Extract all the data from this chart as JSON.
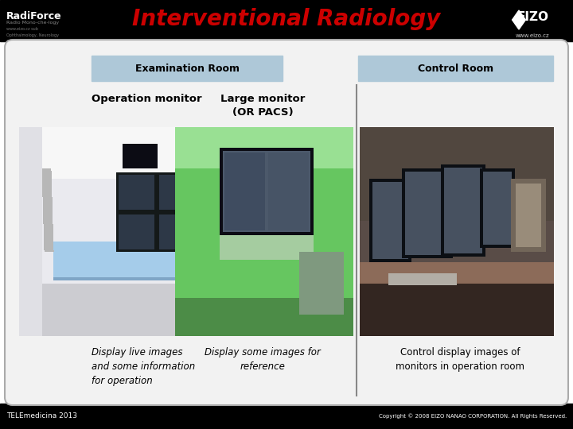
{
  "title": "Interventional Radiology",
  "title_color": "#cc0000",
  "title_fontsize": 20,
  "bg_color": "#ffffff",
  "header_bg": "#000000",
  "logo_left": "RadiForce",
  "logo_right": "EIZO",
  "website": "www.eizo.cz",
  "main_box_facecolor": "#f5f5f5",
  "main_box_edge": "#999999",
  "exam_room_label": "Examination Room",
  "control_room_label": "Control Room",
  "label_bg": "#aec8d8",
  "col1_title": "Operation monitor",
  "col2_title": "Large monitor\n(OR PACS)",
  "col1_desc": "Display live images\nand some information\nfor operation",
  "col2_desc": "Display some images for\nreference",
  "col3_desc": "Control display images of\nmonitors in operation room",
  "footer_left": "TELEmedicina 2013",
  "footer_right": "Copyright © 2008 EIZO NANAO CORPORATION. All Rights Reserved.",
  "footer_bg": "#000000",
  "footer_color": "#ffffff"
}
